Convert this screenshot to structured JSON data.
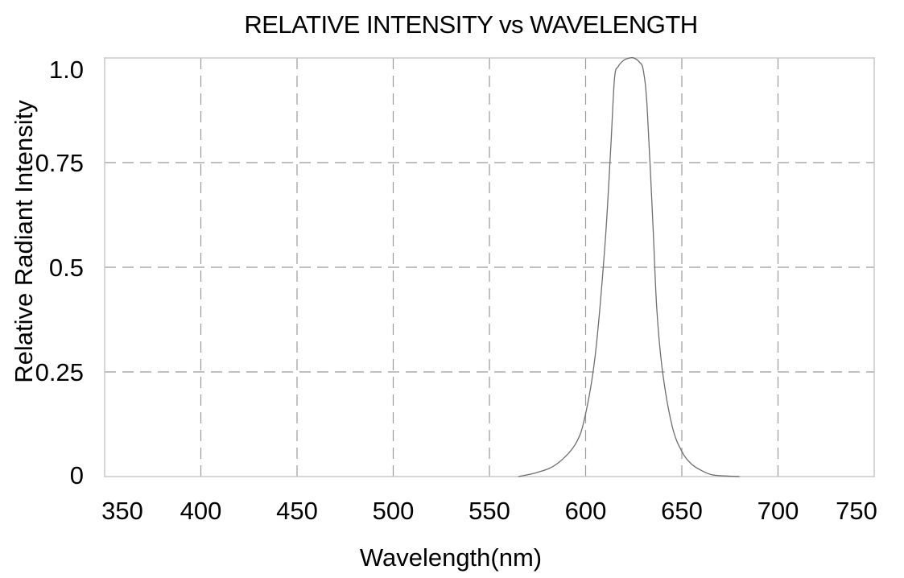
{
  "chart_data": {
    "type": "line",
    "title": "RELATIVE INTENSITY vs WAVELENGTH",
    "xlabel": "Wavelength(nm)",
    "ylabel": "Relative Radiant Intensity",
    "xlim": [
      350,
      750
    ],
    "ylim": [
      0,
      1.0
    ],
    "x_ticks": [
      350,
      400,
      450,
      500,
      550,
      600,
      650,
      700,
      750
    ],
    "x_tick_labels": [
      "350",
      "400",
      "450",
      "500",
      "550",
      "600",
      "650",
      "700",
      "750"
    ],
    "y_ticks": [
      0,
      0.25,
      0.5,
      0.75,
      1.0
    ],
    "y_tick_labels": [
      "0",
      "0.25",
      "0.5",
      "0.75",
      "1.0"
    ],
    "grid": true,
    "legend": "none",
    "series": [
      {
        "color": "#6e6e6e",
        "x": [
          565,
          575,
          585,
          595,
          600,
          605,
          610,
          613,
          615,
          617,
          620,
          623,
          625,
          628,
          630,
          632,
          635,
          637,
          640,
          645,
          650,
          655,
          660,
          665,
          670,
          680
        ],
        "y": [
          0.0,
          0.01,
          0.03,
          0.08,
          0.15,
          0.29,
          0.55,
          0.78,
          0.95,
          0.98,
          0.995,
          1.0,
          1.0,
          0.99,
          0.97,
          0.88,
          0.6,
          0.4,
          0.25,
          0.12,
          0.06,
          0.03,
          0.015,
          0.005,
          0.002,
          0.0
        ]
      }
    ]
  }
}
